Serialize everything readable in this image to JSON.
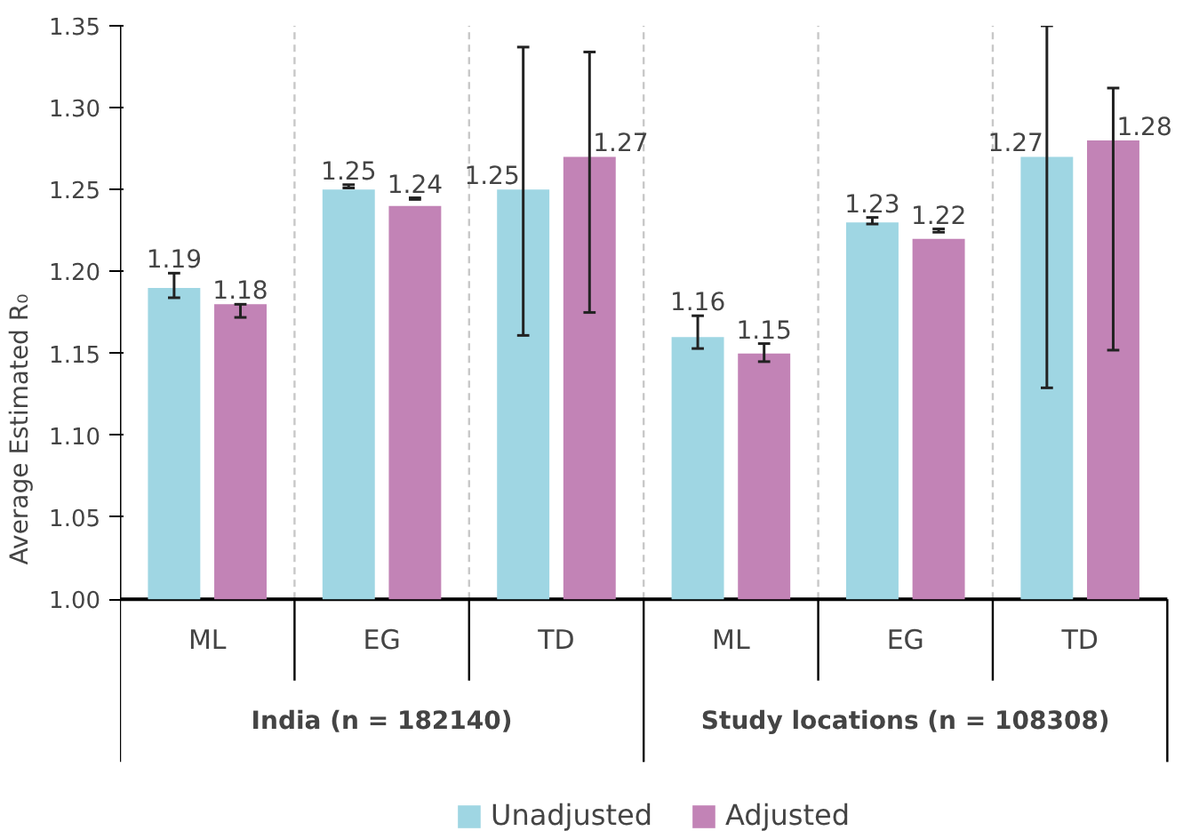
{
  "chart_data": {
    "type": "bar",
    "ylabel": "Average Estimated R₀",
    "categories": [
      "ML",
      "EG",
      "TD",
      "ML",
      "EG",
      "TD"
    ],
    "annotations": [
      "India (n = 182140)",
      "Study locations (n = 108308)"
    ],
    "series": [
      {
        "name": "Unadjusted",
        "color": "#9fd6e3",
        "values": [
          1.19,
          1.25,
          1.25,
          1.16,
          1.23,
          1.27
        ],
        "errors": [
          [
            1.184,
            1.199
          ],
          [
            1.251,
            1.253
          ],
          [
            1.161,
            1.337
          ],
          [
            1.153,
            1.173
          ],
          [
            1.229,
            1.233
          ],
          [
            1.129,
            1.35
          ]
        ]
      },
      {
        "name": "Adjusted",
        "color": "#c283b6",
        "values": [
          1.18,
          1.24,
          1.27,
          1.15,
          1.22,
          1.28
        ],
        "errors": [
          [
            1.172,
            1.18
          ],
          [
            1.244,
            1.245
          ],
          [
            1.175,
            1.334
          ],
          [
            1.145,
            1.156
          ],
          [
            1.224,
            1.226
          ],
          [
            1.152,
            1.312
          ]
        ]
      }
    ],
    "ylim": [
      1.0,
      1.35
    ],
    "yticks": [
      {
        "value": 1.0,
        "label": "1.00"
      },
      {
        "value": 1.05,
        "label": "1.05"
      },
      {
        "value": 1.1,
        "label": "1.10"
      },
      {
        "value": 1.15,
        "label": "1.15"
      },
      {
        "value": 1.2,
        "label": "1.20"
      },
      {
        "value": 1.25,
        "label": "1.25"
      },
      {
        "value": 1.3,
        "label": "1.30"
      },
      {
        "value": 1.35,
        "label": "1.35"
      }
    ],
    "grid": "x",
    "data_labels": true,
    "legend": "bottom"
  }
}
